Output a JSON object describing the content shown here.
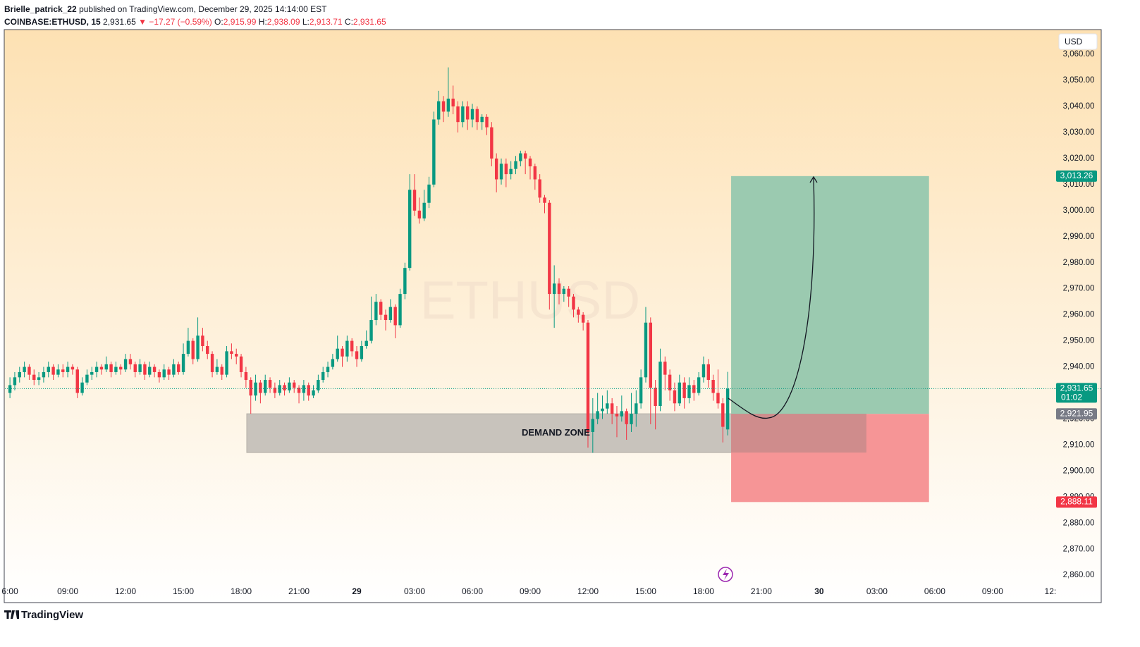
{
  "header": {
    "line1_user": "Brielle_patrick_22",
    "line1_rest": "published on TradingView.com, December 29, 2025 14:14:00 EST",
    "symbol": "COINBASE:ETHUSD, 15",
    "last": "2,931.65",
    "change": "▼ −17.27 (−0.59%)",
    "o_label": "O:",
    "o": "2,915.99",
    "h_label": "H:",
    "h": "2,938.09",
    "l_label": "L:",
    "l": "2,913.71",
    "c_label": "C:",
    "c": "2,931.65"
  },
  "footer": {
    "brand": "TradingView"
  },
  "chart_data": {
    "type": "candlestick",
    "watermark": "ETHUSD",
    "currency": "USD",
    "up_color": "#089981",
    "down_color": "#f23645",
    "xlim": [
      5.74,
      60.26
    ],
    "xticks": [
      {
        "value": 6,
        "label": "6:00"
      },
      {
        "value": 9,
        "label": "09:00"
      },
      {
        "value": 12,
        "label": "12:00"
      },
      {
        "value": 15,
        "label": "15:00"
      },
      {
        "value": 18,
        "label": "18:00"
      },
      {
        "value": 21,
        "label": "21:00"
      },
      {
        "value": 24,
        "label": "29"
      },
      {
        "value": 27,
        "label": "03:00"
      },
      {
        "value": 30,
        "label": "06:00"
      },
      {
        "value": 33,
        "label": "09:00"
      },
      {
        "value": 36,
        "label": "12:00"
      },
      {
        "value": 39,
        "label": "15:00"
      },
      {
        "value": 42,
        "label": "18:00"
      },
      {
        "value": 45,
        "label": "21:00"
      },
      {
        "value": 48,
        "label": "30"
      },
      {
        "value": 51,
        "label": "03:00"
      },
      {
        "value": 54,
        "label": "06:00"
      },
      {
        "value": 57,
        "label": "09:00"
      },
      {
        "value": 60,
        "label": "12:"
      }
    ],
    "ylim": [
      2849.5,
      3069.5
    ],
    "yticks": [
      {
        "value": 2860,
        "label": "2,860.00"
      },
      {
        "value": 2870,
        "label": "2,870.00"
      },
      {
        "value": 2880,
        "label": "2,880.00"
      },
      {
        "value": 2890,
        "label": "2,890.00"
      },
      {
        "value": 2900,
        "label": "2,900.00"
      },
      {
        "value": 2910,
        "label": "2,910.00"
      },
      {
        "value": 2920,
        "label": "2,920.00"
      },
      {
        "value": 2930,
        "label": "2,930.00"
      },
      {
        "value": 2940,
        "label": "2,940.00"
      },
      {
        "value": 2950,
        "label": "2,950.00"
      },
      {
        "value": 2960,
        "label": "2,960.00"
      },
      {
        "value": 2970,
        "label": "2,970.00"
      },
      {
        "value": 2980,
        "label": "2,980.00"
      },
      {
        "value": 2990,
        "label": "2,990.00"
      },
      {
        "value": 3000,
        "label": "3,000.00"
      },
      {
        "value": 3010,
        "label": "3,010.00"
      },
      {
        "value": 3020,
        "label": "3,020.00"
      },
      {
        "value": 3030,
        "label": "3,030.00"
      },
      {
        "value": 3040,
        "label": "3,040.00"
      },
      {
        "value": 3050,
        "label": "3,050.00"
      },
      {
        "value": 3060,
        "label": "3,060.00"
      }
    ],
    "x": [
      6,
      6.25,
      6.5,
      6.75,
      7,
      7.25,
      7.5,
      7.75,
      8,
      8.25,
      8.5,
      8.75,
      9,
      9.25,
      9.5,
      9.75,
      10,
      10.25,
      10.5,
      10.75,
      11,
      11.25,
      11.5,
      11.75,
      12,
      12.25,
      12.5,
      12.75,
      13,
      13.25,
      13.5,
      13.75,
      14,
      14.25,
      14.5,
      14.75,
      15,
      15.25,
      15.5,
      15.75,
      16,
      16.25,
      16.5,
      16.75,
      17,
      17.25,
      17.5,
      17.75,
      18,
      18.25,
      18.5,
      18.75,
      19,
      19.25,
      19.5,
      19.75,
      20,
      20.25,
      20.5,
      20.75,
      21,
      21.25,
      21.5,
      21.75,
      22,
      22.25,
      22.5,
      22.75,
      23,
      23.25,
      23.5,
      23.75,
      24,
      24.25,
      24.5,
      24.75,
      25,
      25.25,
      25.5,
      25.75,
      26,
      26.25,
      26.5,
      26.75,
      27,
      27.25,
      27.5,
      27.75,
      28,
      28.25,
      28.5,
      28.75,
      29,
      29.25,
      29.5,
      29.75,
      30,
      30.25,
      30.5,
      30.75,
      31,
      31.25,
      31.5,
      31.75,
      32,
      32.25,
      32.5,
      32.75,
      33,
      33.25,
      33.5,
      33.75,
      34,
      34.25,
      34.5,
      34.75,
      35,
      35.25,
      35.5,
      35.75,
      36,
      36.25,
      36.5,
      36.75,
      37,
      37.25,
      37.5,
      37.75,
      38,
      38.25,
      38.5,
      38.75,
      39,
      39.25,
      39.5,
      39.75,
      40,
      40.25,
      40.5,
      40.75,
      41,
      41.25,
      41.5,
      41.75,
      42,
      42.25,
      42.5,
      42.75,
      43,
      43.25
    ],
    "ohlc": [
      [
        2930,
        2936,
        2928,
        2933
      ],
      [
        2933,
        2938,
        2931,
        2936
      ],
      [
        2936,
        2940,
        2934,
        2938
      ],
      [
        2938,
        2942,
        2936,
        2940
      ],
      [
        2940,
        2941,
        2935,
        2937
      ],
      [
        2937,
        2939,
        2933,
        2935
      ],
      [
        2935,
        2938,
        2933,
        2936
      ],
      [
        2936,
        2940,
        2934,
        2938
      ],
      [
        2938,
        2942,
        2936,
        2940
      ],
      [
        2940,
        2941,
        2935,
        2937
      ],
      [
        2937,
        2941,
        2936,
        2939
      ],
      [
        2939,
        2941,
        2936,
        2938
      ],
      [
        2938,
        2942,
        2936,
        2940
      ],
      [
        2940,
        2941,
        2937,
        2939
      ],
      [
        2939,
        2940,
        2928,
        2930
      ],
      [
        2930,
        2936,
        2929,
        2934
      ],
      [
        2934,
        2939,
        2933,
        2937
      ],
      [
        2937,
        2940,
        2935,
        2938
      ],
      [
        2938,
        2942,
        2936,
        2940
      ],
      [
        2940,
        2941,
        2937,
        2939
      ],
      [
        2939,
        2944,
        2938,
        2941
      ],
      [
        2941,
        2942,
        2936,
        2938
      ],
      [
        2938,
        2942,
        2937,
        2940
      ],
      [
        2940,
        2941,
        2937,
        2939
      ],
      [
        2939,
        2945,
        2938,
        2943
      ],
      [
        2943,
        2945,
        2939,
        2941
      ],
      [
        2941,
        2942,
        2936,
        2938
      ],
      [
        2938,
        2943,
        2937,
        2941
      ],
      [
        2941,
        2942,
        2935,
        2937
      ],
      [
        2937,
        2942,
        2936,
        2940
      ],
      [
        2940,
        2941,
        2936,
        2938
      ],
      [
        2938,
        2939,
        2934,
        2936
      ],
      [
        2936,
        2941,
        2935,
        2939
      ],
      [
        2939,
        2940,
        2935,
        2937
      ],
      [
        2937,
        2943,
        2936,
        2941
      ],
      [
        2941,
        2942,
        2937,
        2938
      ],
      [
        2938,
        2949,
        2937,
        2945
      ],
      [
        2945,
        2955,
        2944,
        2950
      ],
      [
        2950,
        2951,
        2941,
        2943
      ],
      [
        2943,
        2959,
        2942,
        2952
      ],
      [
        2952,
        2955,
        2946,
        2948
      ],
      [
        2948,
        2950,
        2943,
        2945
      ],
      [
        2945,
        2946,
        2936,
        2938
      ],
      [
        2938,
        2943,
        2937,
        2940
      ],
      [
        2940,
        2941,
        2935,
        2937
      ],
      [
        2937,
        2948,
        2936,
        2946
      ],
      [
        2946,
        2949,
        2943,
        2945
      ],
      [
        2945,
        2947,
        2941,
        2944
      ],
      [
        2944,
        2945,
        2936,
        2938
      ],
      [
        2938,
        2940,
        2932,
        2935
      ],
      [
        2935,
        2936,
        2922,
        2929
      ],
      [
        2929,
        2937,
        2927,
        2934
      ],
      [
        2934,
        2935,
        2926,
        2930
      ],
      [
        2930,
        2937,
        2929,
        2935
      ],
      [
        2935,
        2936,
        2930,
        2932
      ],
      [
        2932,
        2934,
        2928,
        2930
      ],
      [
        2930,
        2935,
        2929,
        2933
      ],
      [
        2933,
        2934,
        2929,
        2931
      ],
      [
        2931,
        2936,
        2930,
        2934
      ],
      [
        2934,
        2935,
        2930,
        2932
      ],
      [
        2932,
        2933,
        2926,
        2930
      ],
      [
        2930,
        2935,
        2927,
        2933
      ],
      [
        2933,
        2934,
        2927,
        2929
      ],
      [
        2929,
        2933,
        2928,
        2931
      ],
      [
        2931,
        2937,
        2930,
        2935
      ],
      [
        2935,
        2940,
        2934,
        2938
      ],
      [
        2938,
        2942,
        2936,
        2940
      ],
      [
        2940,
        2945,
        2939,
        2943
      ],
      [
        2943,
        2952,
        2942,
        2947
      ],
      [
        2947,
        2948,
        2940,
        2944
      ],
      [
        2944,
        2952,
        2942,
        2950
      ],
      [
        2950,
        2951,
        2944,
        2946
      ],
      [
        2946,
        2948,
        2940,
        2943
      ],
      [
        2943,
        2950,
        2942,
        2948
      ],
      [
        2948,
        2954,
        2947,
        2950
      ],
      [
        2950,
        2967,
        2949,
        2958
      ],
      [
        2958,
        2968,
        2956,
        2965
      ],
      [
        2965,
        2966,
        2958,
        2960
      ],
      [
        2960,
        2962,
        2954,
        2958
      ],
      [
        2958,
        2966,
        2957,
        2963
      ],
      [
        2963,
        2964,
        2951,
        2956
      ],
      [
        2956,
        2970,
        2955,
        2968
      ],
      [
        2968,
        2980,
        2966,
        2978
      ],
      [
        2978,
        3014,
        2977,
        3008
      ],
      [
        3008,
        3014,
        2998,
        3000
      ],
      [
        3000,
        3005,
        2995,
        2997
      ],
      [
        2997,
        3008,
        2996,
        3003
      ],
      [
        3003,
        3013,
        3001,
        3010
      ],
      [
        3010,
        3038,
        3009,
        3035
      ],
      [
        3035,
        3046,
        3033,
        3042
      ],
      [
        3042,
        3044,
        3034,
        3038
      ],
      [
        3038,
        3055,
        3036,
        3043
      ],
      [
        3043,
        3048,
        3037,
        3040
      ],
      [
        3040,
        3042,
        3030,
        3034
      ],
      [
        3034,
        3042,
        3032,
        3040
      ],
      [
        3040,
        3042,
        3031,
        3035
      ],
      [
        3035,
        3041,
        3032,
        3039
      ],
      [
        3039,
        3040,
        3031,
        3034
      ],
      [
        3034,
        3037,
        3031,
        3036
      ],
      [
        3036,
        3037,
        3029,
        3032
      ],
      [
        3032,
        3034,
        3017,
        3020
      ],
      [
        3020,
        3022,
        3007,
        3012
      ],
      [
        3012,
        3020,
        3010,
        3018
      ],
      [
        3018,
        3020,
        3009,
        3014
      ],
      [
        3014,
        3019,
        3012,
        3016
      ],
      [
        3016,
        3021,
        3014,
        3019
      ],
      [
        3019,
        3023,
        3017,
        3022
      ],
      [
        3022,
        3023,
        3014,
        3020
      ],
      [
        3020,
        3021,
        3012,
        3017
      ],
      [
        3017,
        3018,
        3008,
        3012
      ],
      [
        3012,
        3014,
        3003,
        3005
      ],
      [
        3005,
        3006,
        2999,
        3003
      ],
      [
        3003,
        3004,
        2962,
        2968
      ],
      [
        2968,
        2979,
        2955,
        2972
      ],
      [
        2972,
        2974,
        2964,
        2968
      ],
      [
        2968,
        2971,
        2965,
        2970
      ],
      [
        2970,
        2971,
        2963,
        2967
      ],
      [
        2967,
        2968,
        2959,
        2962
      ],
      [
        2962,
        2963,
        2957,
        2960
      ],
      [
        2960,
        2961,
        2954,
        2957
      ],
      [
        2957,
        2958,
        2909,
        2915
      ],
      [
        2915,
        2928,
        2907,
        2920
      ],
      [
        2920,
        2930,
        2918,
        2923
      ],
      [
        2923,
        2929,
        2920,
        2924
      ],
      [
        2924,
        2931,
        2922,
        2926
      ],
      [
        2926,
        2928,
        2918,
        2922
      ],
      [
        2922,
        2925,
        2913,
        2921
      ],
      [
        2921,
        2929,
        2919,
        2923
      ],
      [
        2923,
        2924,
        2912,
        2918
      ],
      [
        2918,
        2930,
        2915,
        2922
      ],
      [
        2922,
        2931,
        2917,
        2926
      ],
      [
        2926,
        2939,
        2924,
        2936
      ],
      [
        2936,
        2963,
        2934,
        2957
      ],
      [
        2957,
        2959,
        2918,
        2932
      ],
      [
        2932,
        2935,
        2916,
        2925
      ],
      [
        2925,
        2947,
        2923,
        2942
      ],
      [
        2942,
        2944,
        2931,
        2937
      ],
      [
        2937,
        2939,
        2927,
        2931
      ],
      [
        2931,
        2934,
        2923,
        2926
      ],
      [
        2926,
        2937,
        2925,
        2934
      ],
      [
        2934,
        2936,
        2924,
        2928
      ],
      [
        2928,
        2936,
        2926,
        2933
      ],
      [
        2933,
        2935,
        2927,
        2930
      ],
      [
        2930,
        2938,
        2929,
        2936
      ],
      [
        2936,
        2944,
        2934,
        2941
      ],
      [
        2941,
        2943,
        2932,
        2935
      ],
      [
        2935,
        2937,
        2927,
        2930
      ],
      [
        2930,
        2939,
        2924,
        2926
      ],
      [
        2926,
        2928,
        2911,
        2917
      ],
      [
        2915.99,
        2938.09,
        2913.71,
        2931.65
      ]
    ],
    "demand_zone": {
      "label": "DEMAND ZONE",
      "x": [
        18.29,
        50.45
      ],
      "y": [
        2907.1,
        2922
      ]
    },
    "position": {
      "x": [
        43.43,
        53.7
      ],
      "target": 3013.26,
      "entry": 2921.95,
      "stop": 2888.11,
      "profit_color": "#9bcab0",
      "loss_color": "#f69596"
    },
    "price_tags": [
      {
        "value": 3013.26,
        "label": "3,013.26",
        "color": "#089981"
      },
      {
        "value": 2931.65,
        "label": "2,931.65",
        "sub": "01:02",
        "color": "#089981"
      },
      {
        "value": 2921.95,
        "label": "2,921.95",
        "color": "#787b86"
      },
      {
        "value": 2888.11,
        "label": "2,888.11",
        "color": "#f23645"
      }
    ]
  }
}
